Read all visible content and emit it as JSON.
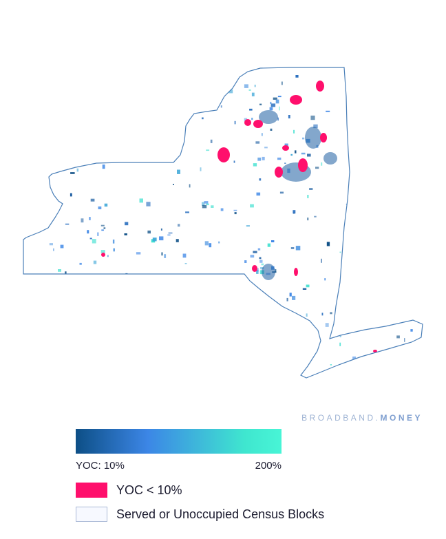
{
  "brand": {
    "prefix": "BROADBAND.",
    "name": "MONEY"
  },
  "map": {
    "region": "New York",
    "outline_color": "#4a7fb8",
    "fill_color": "#ffffff",
    "blue_palette": [
      "#0d4f86",
      "#1d5ea2",
      "#2a6fbf",
      "#3c86e6",
      "#5e9fe4",
      "#40a8d8",
      "#3fe0d0"
    ],
    "pink_color": "#ff0f6c"
  },
  "legend": {
    "gradient": {
      "start_color": "#0d4f86",
      "mid_color": "#3c86e6",
      "end_color": "#48f5d6"
    },
    "min_label": "YOC: 10%",
    "max_label": "200%",
    "items": [
      {
        "label": "YOC < 10%",
        "color": "#ff0f6c"
      },
      {
        "label": "Served or Unoccupied Census Blocks",
        "color": "#f7f9ff"
      }
    ]
  }
}
